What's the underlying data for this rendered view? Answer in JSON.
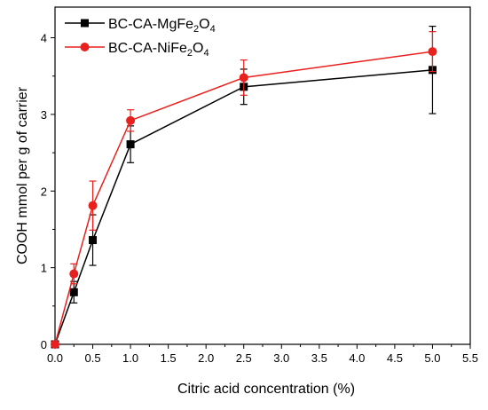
{
  "chart_data": {
    "type": "line",
    "xlabel": "Citric acid concentration (%)",
    "ylabel": "COOH mmol per g of carrier",
    "xlim": [
      0.0,
      5.5
    ],
    "ylim": [
      0,
      4.4
    ],
    "x_ticks": [
      "0.0",
      "0.5",
      "1.0",
      "1.5",
      "2.0",
      "2.5",
      "3.0",
      "3.5",
      "4.0",
      "4.5",
      "5.0",
      "5.5"
    ],
    "y_ticks": [
      "0",
      "1",
      "2",
      "3",
      "4"
    ],
    "grid": false,
    "legend_position": "top-left",
    "series": [
      {
        "name": "BC-CA-MgFe2O4",
        "legend_parts": [
          "BC-CA-MgFe",
          "2",
          "O",
          "4"
        ],
        "color": "#000000",
        "marker": "square",
        "x": [
          0,
          0.25,
          0.5,
          1.0,
          2.5,
          5.0
        ],
        "y": [
          0.0,
          0.68,
          1.36,
          2.61,
          3.36,
          3.58
        ],
        "err": [
          0,
          0.14,
          0.33,
          0.24,
          0.23,
          0.57
        ]
      },
      {
        "name": "BC-CA-NiFe2O4",
        "legend_parts": [
          "BC-CA-NiFe",
          "2",
          "O",
          "4"
        ],
        "color": "#e8201e",
        "marker": "circle",
        "x": [
          0,
          0.25,
          0.5,
          1.0,
          2.5,
          5.0
        ],
        "y": [
          0.0,
          0.92,
          1.81,
          2.92,
          3.48,
          3.82
        ],
        "err": [
          0,
          0.13,
          0.32,
          0.14,
          0.23,
          0.26
        ]
      }
    ]
  }
}
